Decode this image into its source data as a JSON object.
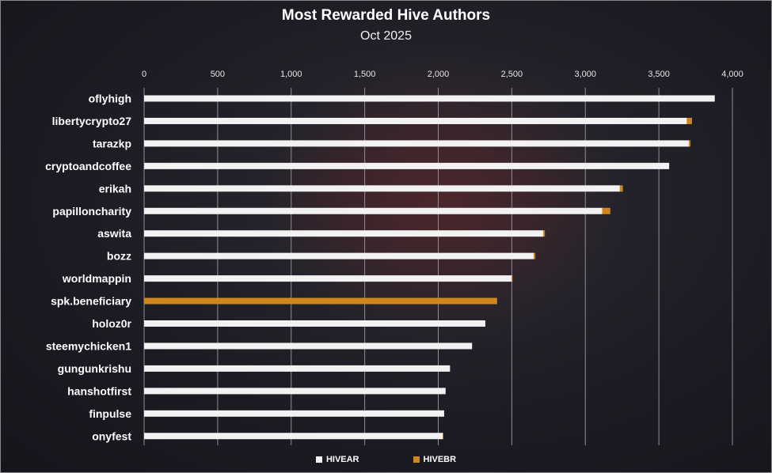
{
  "chart_data": {
    "type": "bar",
    "orientation": "horizontal",
    "stacked": true,
    "title": "Most Rewarded Hive Authors",
    "subtitle": "Oct 2025",
    "xlabel": "",
    "ylabel": "",
    "xlim": [
      0,
      4000
    ],
    "xticks": [
      0,
      500,
      1000,
      1500,
      2000,
      2500,
      3000,
      3500,
      4000
    ],
    "xtick_labels": [
      "0",
      "500",
      "1,000",
      "1,500",
      "2,000",
      "2,500",
      "3,000",
      "3,500",
      "4,000"
    ],
    "grid": true,
    "legend_position": "bottom",
    "categories": [
      "oflyhigh",
      "libertycrypto27",
      "tarazkp",
      "cryptoandcoffee",
      "erikah",
      "papilloncharity",
      "aswita",
      "bozz",
      "worldmappin",
      "spk.beneficiary",
      "holoz0r",
      "steemychicken1",
      "gungunkrishu",
      "hanshotfirst",
      "finpulse",
      "onyfest"
    ],
    "series": [
      {
        "name": "HIVEAR",
        "color": "#f2f2f2",
        "values": [
          3880,
          3690,
          3705,
          3570,
          3235,
          3115,
          2715,
          2650,
          2500,
          0,
          2320,
          2230,
          2080,
          2050,
          2040,
          2030
        ]
      },
      {
        "name": "HIVEBR",
        "color": "#d0861a",
        "values": [
          0,
          35,
          10,
          0,
          20,
          55,
          10,
          10,
          5,
          2400,
          0,
          0,
          0,
          0,
          0,
          5
        ]
      }
    ]
  }
}
